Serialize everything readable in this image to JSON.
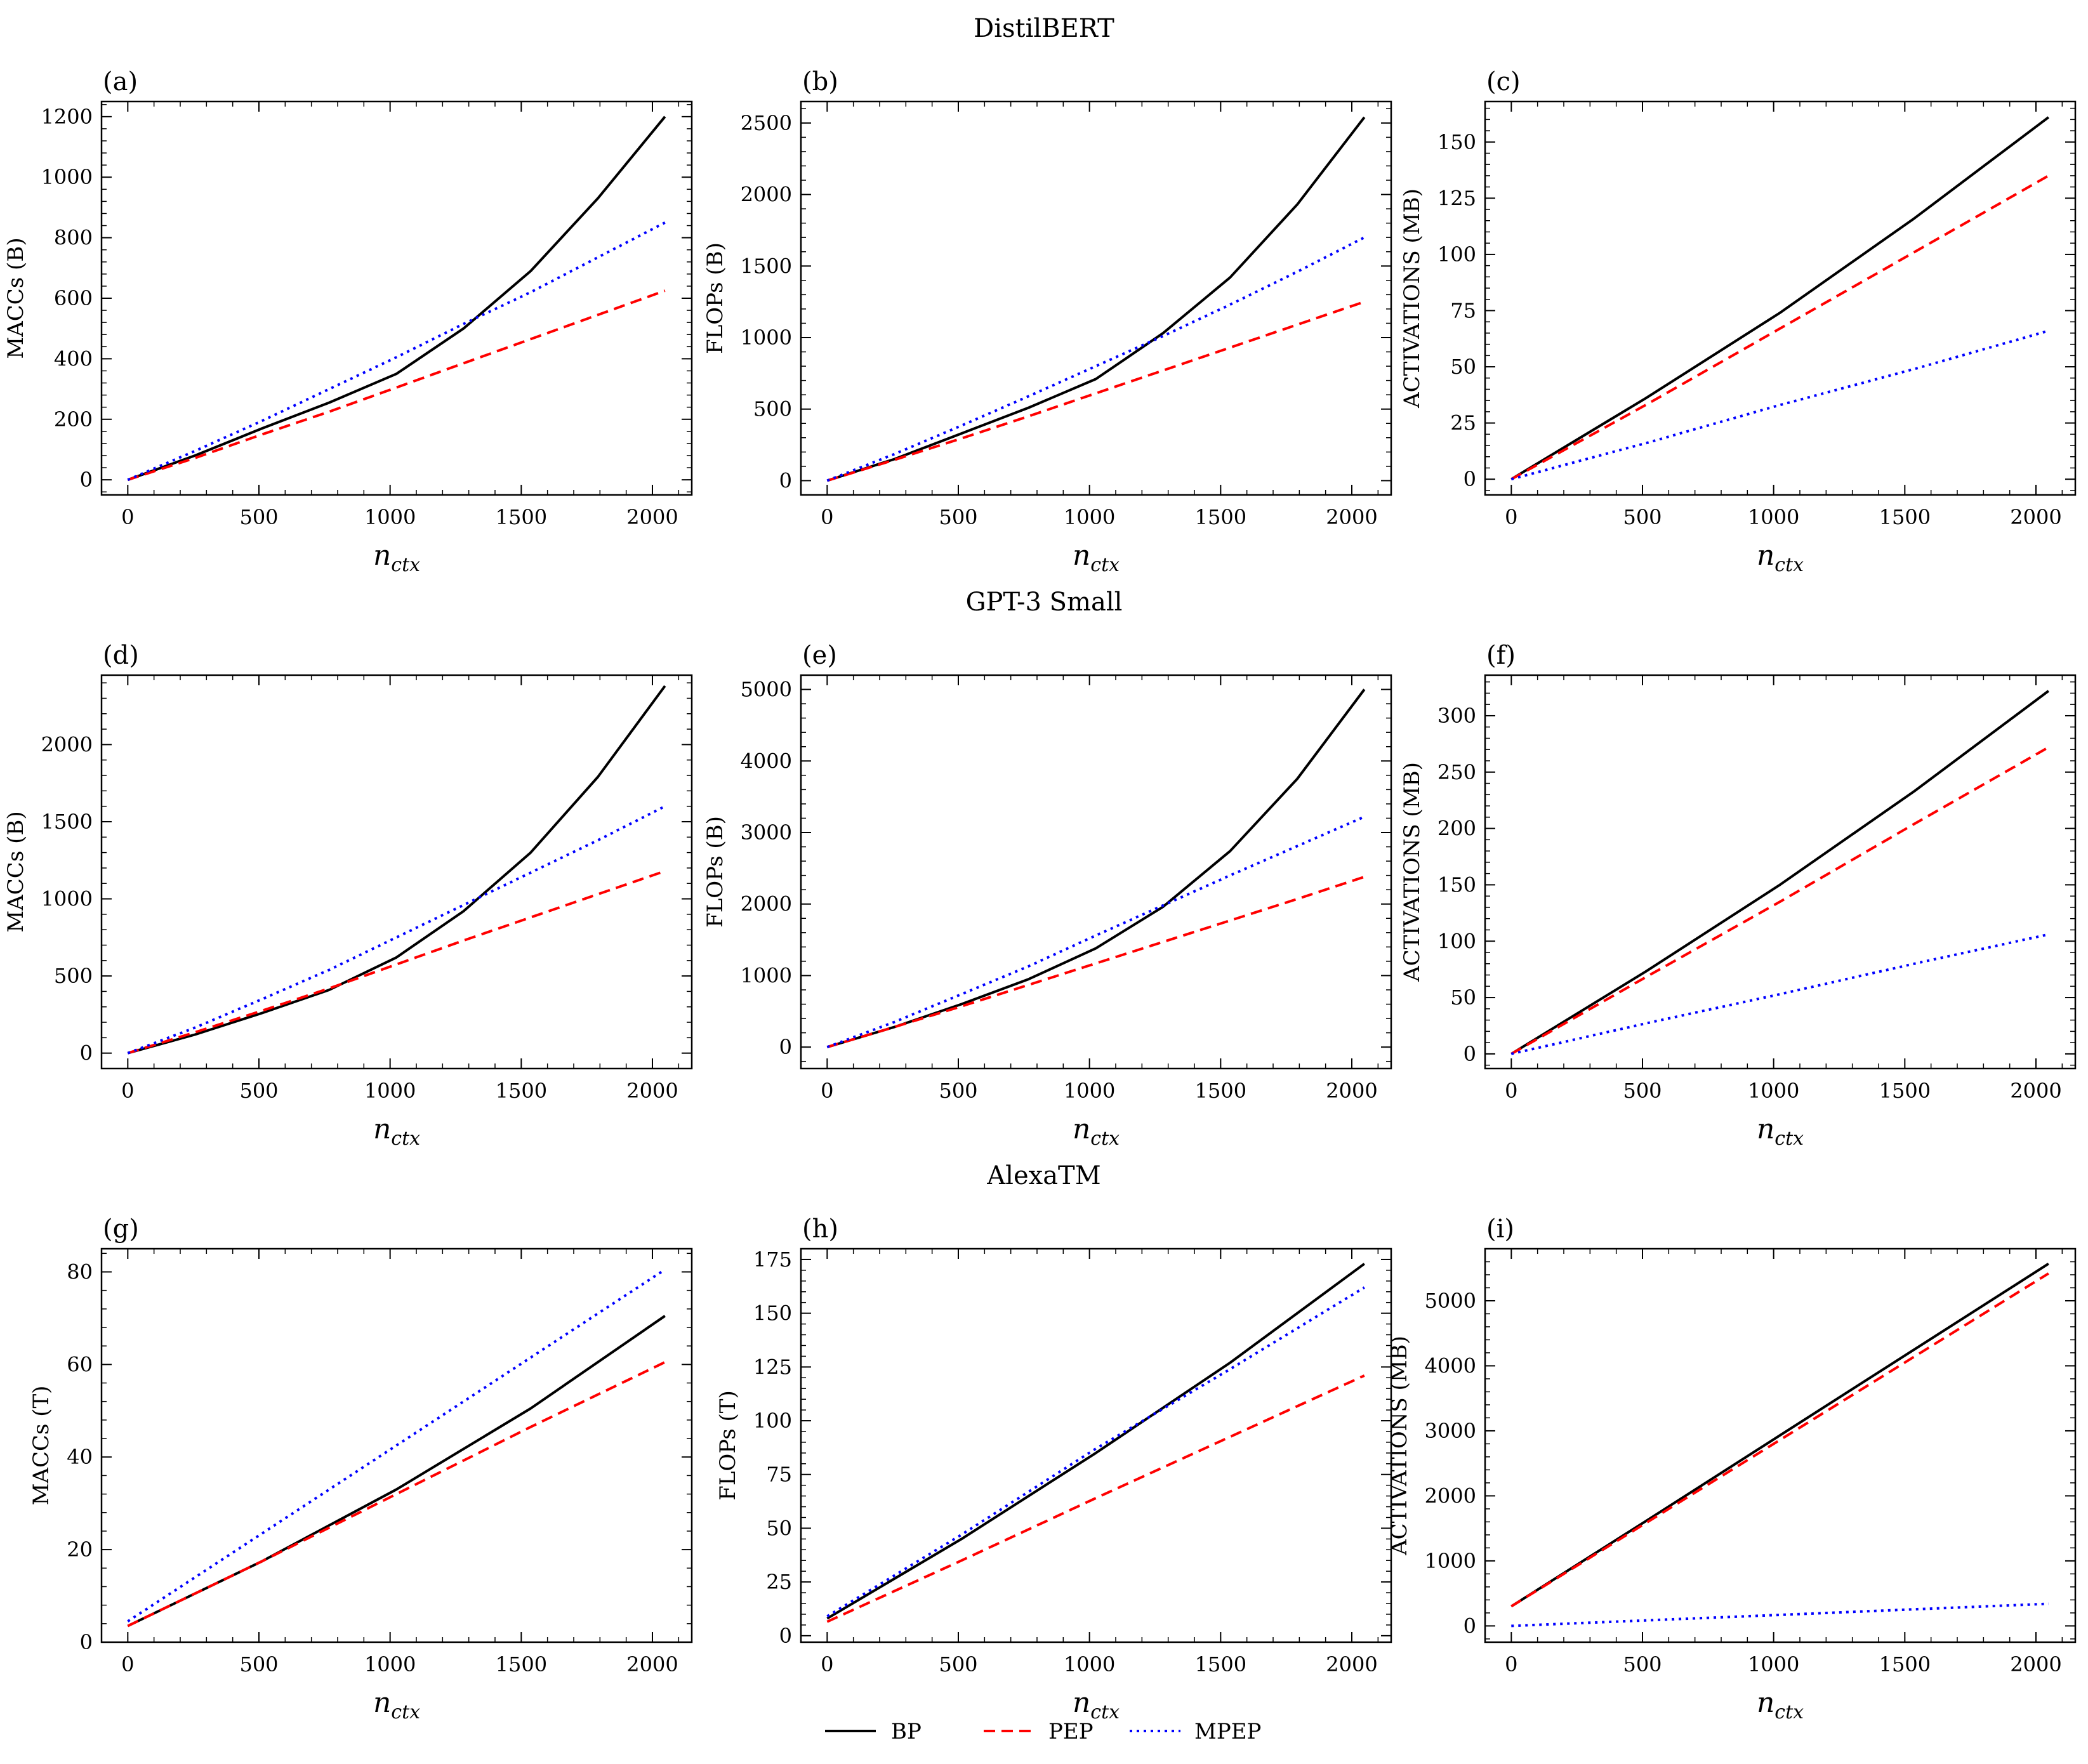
{
  "figure": {
    "row_titles": [
      "DistilBERT",
      "GPT-3 Small",
      "AlexaTM"
    ],
    "x_label_main": "n",
    "x_label_sub": "ctx",
    "legend": [
      {
        "name": "BP",
        "color": "#000000",
        "style": "solid"
      },
      {
        "name": "PEP",
        "color": "#ff0000",
        "style": "dashed"
      },
      {
        "name": "MPEP",
        "color": "#0000ff",
        "style": "dotted"
      }
    ]
  },
  "chart_data": [
    {
      "type": "line",
      "panel": "(a)",
      "ylabel": "MACCs (B)",
      "xlim": [
        -100,
        2150
      ],
      "ylim": [
        -50,
        1250
      ],
      "xticks": [
        0,
        500,
        1000,
        1500,
        2000
      ],
      "yticks": [
        0,
        200,
        400,
        600,
        800,
        1000,
        1200
      ],
      "x": [
        0,
        256,
        512,
        768,
        1024,
        1280,
        1536,
        1792,
        2048
      ],
      "series": [
        {
          "name": "BP",
          "values": [
            0,
            80,
            170,
            255,
            350,
            500,
            690,
            930,
            1200
          ]
        },
        {
          "name": "PEP",
          "values": [
            0,
            72,
            150,
            225,
            305,
            385,
            465,
            545,
            625
          ]
        },
        {
          "name": "MPEP",
          "values": [
            0,
            95,
            195,
            300,
            405,
            515,
            620,
            735,
            850
          ]
        }
      ]
    },
    {
      "type": "line",
      "panel": "(b)",
      "ylabel": "FLOPs (B)",
      "xlim": [
        -100,
        2150
      ],
      "ylim": [
        -100,
        2650
      ],
      "xticks": [
        0,
        500,
        1000,
        1500,
        2000
      ],
      "yticks": [
        0,
        500,
        1000,
        1500,
        2000,
        2500
      ],
      "x": [
        0,
        256,
        512,
        768,
        1024,
        1280,
        1536,
        1792,
        2048
      ],
      "series": [
        {
          "name": "BP",
          "values": [
            0,
            150,
            330,
            510,
            710,
            1030,
            1420,
            1930,
            2540
          ]
        },
        {
          "name": "PEP",
          "values": [
            0,
            145,
            295,
            450,
            610,
            770,
            930,
            1090,
            1250
          ]
        },
        {
          "name": "MPEP",
          "values": [
            0,
            185,
            385,
            590,
            800,
            1010,
            1230,
            1460,
            1700
          ]
        }
      ]
    },
    {
      "type": "line",
      "panel": "(c)",
      "ylabel": "ACTIVATIONS (MB)",
      "xlim": [
        -100,
        2150
      ],
      "ylim": [
        -7,
        168
      ],
      "xticks": [
        0,
        500,
        1000,
        1500,
        2000
      ],
      "yticks": [
        0,
        25,
        50,
        75,
        100,
        125,
        150
      ],
      "x": [
        0,
        512,
        1024,
        1536,
        2048
      ],
      "series": [
        {
          "name": "BP",
          "values": [
            0,
            36,
            74,
            116,
            161
          ]
        },
        {
          "name": "PEP",
          "values": [
            0,
            33,
            67,
            101,
            135
          ]
        },
        {
          "name": "MPEP",
          "values": [
            0,
            16,
            33,
            49,
            66
          ]
        }
      ]
    },
    {
      "type": "line",
      "panel": "(d)",
      "ylabel": "MACCs (B)",
      "xlim": [
        -100,
        2150
      ],
      "ylim": [
        -100,
        2450
      ],
      "xticks": [
        0,
        500,
        1000,
        1500,
        2000
      ],
      "yticks": [
        0,
        500,
        1000,
        1500,
        2000
      ],
      "x": [
        0,
        256,
        512,
        768,
        1024,
        1280,
        1536,
        1792,
        2048
      ],
      "series": [
        {
          "name": "BP",
          "values": [
            0,
            120,
            260,
            410,
            620,
            920,
            1300,
            1790,
            2380
          ]
        },
        {
          "name": "PEP",
          "values": [
            0,
            135,
            275,
            420,
            575,
            730,
            880,
            1030,
            1180
          ]
        },
        {
          "name": "MPEP",
          "values": [
            0,
            165,
            350,
            540,
            750,
            960,
            1170,
            1380,
            1600
          ]
        }
      ]
    },
    {
      "type": "line",
      "panel": "(e)",
      "ylabel": "FLOPs (B)",
      "xlim": [
        -100,
        2150
      ],
      "ylim": [
        -300,
        5200
      ],
      "xticks": [
        0,
        500,
        1000,
        1500,
        2000
      ],
      "yticks": [
        0,
        1000,
        2000,
        3000,
        4000,
        5000
      ],
      "x": [
        0,
        256,
        512,
        768,
        1024,
        1280,
        1536,
        1792,
        2048
      ],
      "series": [
        {
          "name": "BP",
          "values": [
            0,
            280,
            600,
            950,
            1380,
            1960,
            2740,
            3750,
            5000
          ]
        },
        {
          "name": "PEP",
          "values": [
            0,
            280,
            570,
            870,
            1170,
            1470,
            1770,
            2070,
            2380
          ]
        },
        {
          "name": "MPEP",
          "values": [
            0,
            350,
            740,
            1130,
            1560,
            1980,
            2400,
            2810,
            3220
          ]
        }
      ]
    },
    {
      "type": "line",
      "panel": "(f)",
      "ylabel": "ACTIVATIONS (MB)",
      "xlim": [
        -100,
        2150
      ],
      "ylim": [
        -13,
        336
      ],
      "xticks": [
        0,
        500,
        1000,
        1500,
        2000
      ],
      "yticks": [
        0,
        50,
        100,
        150,
        200,
        250,
        300
      ],
      "x": [
        0,
        512,
        1024,
        1536,
        2048
      ],
      "series": [
        {
          "name": "BP",
          "values": [
            0,
            73,
            150,
            233,
            322
          ]
        },
        {
          "name": "PEP",
          "values": [
            0,
            68,
            135,
            204,
            272
          ]
        },
        {
          "name": "MPEP",
          "values": [
            0,
            27,
            53,
            80,
            106
          ]
        }
      ]
    },
    {
      "type": "line",
      "panel": "(g)",
      "ylabel": "MACCs (T)",
      "xlim": [
        -100,
        2150
      ],
      "ylim": [
        0,
        85
      ],
      "xticks": [
        0,
        500,
        1000,
        1500,
        2000
      ],
      "yticks": [
        0,
        20,
        40,
        60,
        80
      ],
      "x": [
        0,
        512,
        1024,
        1536,
        2048
      ],
      "series": [
        {
          "name": "BP",
          "values": [
            3.5,
            17.5,
            33,
            50.5,
            70.5
          ]
        },
        {
          "name": "PEP",
          "values": [
            3.5,
            17.5,
            32,
            46.5,
            60.5
          ]
        },
        {
          "name": "MPEP",
          "values": [
            4.5,
            23.5,
            42.5,
            61.5,
            80.5
          ]
        }
      ]
    },
    {
      "type": "line",
      "panel": "(h)",
      "ylabel": "FLOPs (T)",
      "xlim": [
        -100,
        2150
      ],
      "ylim": [
        -3,
        180
      ],
      "xticks": [
        0,
        500,
        1000,
        1500,
        2000
      ],
      "yticks": [
        0,
        25,
        50,
        75,
        100,
        125,
        150,
        175
      ],
      "x": [
        0,
        512,
        1024,
        1536,
        2048
      ],
      "series": [
        {
          "name": "BP",
          "values": [
            8,
            45,
            85,
            127,
            173
          ]
        },
        {
          "name": "PEP",
          "values": [
            6.5,
            35,
            64,
            92.5,
            121
          ]
        },
        {
          "name": "MPEP",
          "values": [
            9,
            47,
            87,
            124,
            162
          ]
        }
      ]
    },
    {
      "type": "line",
      "panel": "(i)",
      "ylabel": "ACTIVATIONS (MB)",
      "xlim": [
        -100,
        2150
      ],
      "ylim": [
        -250,
        5800
      ],
      "xticks": [
        0,
        500,
        1000,
        1500,
        2000
      ],
      "yticks": [
        0,
        1000,
        2000,
        3000,
        4000,
        5000
      ],
      "x": [
        0,
        512,
        1024,
        1536,
        2048
      ],
      "series": [
        {
          "name": "BP",
          "values": [
            300,
            1610,
            2930,
            4250,
            5570
          ]
        },
        {
          "name": "PEP",
          "values": [
            300,
            1580,
            2860,
            4140,
            5420
          ]
        },
        {
          "name": "MPEP",
          "values": [
            0,
            85,
            170,
            255,
            340
          ]
        }
      ]
    }
  ]
}
